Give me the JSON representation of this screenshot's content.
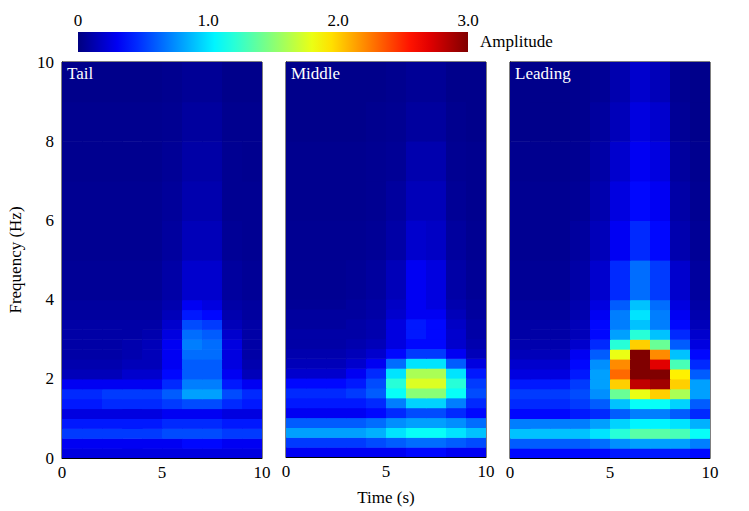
{
  "chart_data": {
    "type": "heatmap",
    "x_label": "Time (s)",
    "y_label": "Frequency (Hz)",
    "xlim": [
      0,
      10
    ],
    "xticks": [
      0,
      5,
      10
    ],
    "ylim": [
      0,
      10
    ],
    "yticks": [
      0,
      2,
      4,
      6,
      8,
      10
    ],
    "x_edges": [
      0,
      1,
      2,
      3,
      4,
      5,
      6,
      7,
      8,
      9,
      10
    ],
    "y_edges": [
      0,
      0.25,
      0.5,
      0.75,
      1,
      1.25,
      1.5,
      1.75,
      2,
      2.25,
      2.5,
      2.75,
      3,
      3.25,
      3.5,
      3.75,
      4,
      5,
      6,
      7,
      8,
      9,
      10
    ],
    "colorbar": {
      "title": "Amplitude",
      "range": [
        0,
        3
      ],
      "ticks": [
        0,
        {
          "value": 1,
          "label": "1.0"
        },
        {
          "value": 2,
          "label": "2.0"
        },
        {
          "value": 3,
          "label": "3.0"
        }
      ]
    },
    "panels": [
      {
        "title": "Tail",
        "cells": [
          [
            0.25,
            0.25,
            0.25,
            0.25,
            0.25,
            0.25,
            0.25,
            0.25,
            0.25,
            0.25
          ],
          [
            0.3,
            0.3,
            0.3,
            0.3,
            0.3,
            0.3,
            0.35,
            0.35,
            0.3,
            0.3
          ],
          [
            0.5,
            0.5,
            0.5,
            0.5,
            0.5,
            0.55,
            0.55,
            0.55,
            0.5,
            0.5
          ],
          [
            0.4,
            0.4,
            0.4,
            0.4,
            0.4,
            0.45,
            0.45,
            0.45,
            0.4,
            0.4
          ],
          [
            0.25,
            0.25,
            0.25,
            0.25,
            0.25,
            0.3,
            0.3,
            0.3,
            0.25,
            0.25
          ],
          [
            0.4,
            0.4,
            0.45,
            0.45,
            0.45,
            0.5,
            0.55,
            0.55,
            0.45,
            0.4
          ],
          [
            0.45,
            0.45,
            0.5,
            0.5,
            0.5,
            0.6,
            0.8,
            0.8,
            0.55,
            0.45
          ],
          [
            0.3,
            0.3,
            0.3,
            0.3,
            0.3,
            0.45,
            0.7,
            0.7,
            0.4,
            0.3
          ],
          [
            0.15,
            0.15,
            0.15,
            0.2,
            0.2,
            0.35,
            0.6,
            0.6,
            0.3,
            0.15
          ],
          [
            0.12,
            0.12,
            0.12,
            0.15,
            0.15,
            0.3,
            0.6,
            0.6,
            0.25,
            0.12
          ],
          [
            0.1,
            0.1,
            0.1,
            0.12,
            0.15,
            0.3,
            0.65,
            0.65,
            0.25,
            0.1
          ],
          [
            0.1,
            0.1,
            0.1,
            0.12,
            0.15,
            0.3,
            0.7,
            0.65,
            0.25,
            0.1
          ],
          [
            0.1,
            0.1,
            0.1,
            0.1,
            0.12,
            0.25,
            0.65,
            0.6,
            0.2,
            0.1
          ],
          [
            0.1,
            0.1,
            0.1,
            0.1,
            0.1,
            0.2,
            0.55,
            0.5,
            0.15,
            0.1
          ],
          [
            0.08,
            0.08,
            0.08,
            0.08,
            0.08,
            0.15,
            0.4,
            0.35,
            0.12,
            0.08
          ],
          [
            0.08,
            0.08,
            0.08,
            0.08,
            0.08,
            0.12,
            0.3,
            0.25,
            0.1,
            0.08
          ],
          [
            0.06,
            0.06,
            0.06,
            0.06,
            0.06,
            0.1,
            0.2,
            0.2,
            0.08,
            0.06
          ],
          [
            0.05,
            0.05,
            0.05,
            0.05,
            0.05,
            0.08,
            0.15,
            0.15,
            0.06,
            0.05
          ],
          [
            0.05,
            0.05,
            0.05,
            0.05,
            0.05,
            0.07,
            0.12,
            0.12,
            0.05,
            0.05
          ],
          [
            0.04,
            0.04,
            0.04,
            0.04,
            0.04,
            0.06,
            0.1,
            0.1,
            0.05,
            0.04
          ],
          [
            0.04,
            0.04,
            0.04,
            0.04,
            0.04,
            0.05,
            0.08,
            0.08,
            0.04,
            0.04
          ],
          [
            0.03,
            0.03,
            0.03,
            0.03,
            0.03,
            0.04,
            0.06,
            0.06,
            0.03,
            0.03
          ]
        ]
      },
      {
        "title": "Middle",
        "cells": [
          [
            0.3,
            0.3,
            0.3,
            0.3,
            0.3,
            0.3,
            0.35,
            0.35,
            0.3,
            0.3
          ],
          [
            0.5,
            0.5,
            0.5,
            0.5,
            0.55,
            0.6,
            0.65,
            0.65,
            0.6,
            0.55
          ],
          [
            0.8,
            0.8,
            0.8,
            0.8,
            0.85,
            1.0,
            1.1,
            1.1,
            1.0,
            0.9
          ],
          [
            0.6,
            0.6,
            0.6,
            0.6,
            0.65,
            0.75,
            0.8,
            0.8,
            0.75,
            0.65
          ],
          [
            0.3,
            0.3,
            0.3,
            0.3,
            0.35,
            0.45,
            0.55,
            0.55,
            0.45,
            0.35
          ],
          [
            0.4,
            0.4,
            0.4,
            0.4,
            0.45,
            0.7,
            0.95,
            0.95,
            0.7,
            0.45
          ],
          [
            0.45,
            0.45,
            0.45,
            0.5,
            0.6,
            1.1,
            1.5,
            1.5,
            1.1,
            0.55
          ],
          [
            0.35,
            0.35,
            0.35,
            0.4,
            0.55,
            1.2,
            1.75,
            1.75,
            1.2,
            0.5
          ],
          [
            0.2,
            0.2,
            0.2,
            0.3,
            0.45,
            1.0,
            1.6,
            1.6,
            1.0,
            0.4
          ],
          [
            0.15,
            0.15,
            0.15,
            0.2,
            0.3,
            0.65,
            1.0,
            1.0,
            0.6,
            0.25
          ],
          [
            0.12,
            0.12,
            0.12,
            0.15,
            0.2,
            0.35,
            0.5,
            0.5,
            0.3,
            0.15
          ],
          [
            0.1,
            0.1,
            0.1,
            0.12,
            0.15,
            0.25,
            0.35,
            0.35,
            0.2,
            0.12
          ],
          [
            0.1,
            0.1,
            0.1,
            0.1,
            0.12,
            0.25,
            0.4,
            0.35,
            0.2,
            0.1
          ],
          [
            0.08,
            0.08,
            0.08,
            0.1,
            0.12,
            0.25,
            0.4,
            0.35,
            0.18,
            0.1
          ],
          [
            0.08,
            0.08,
            0.08,
            0.08,
            0.1,
            0.2,
            0.3,
            0.3,
            0.15,
            0.08
          ],
          [
            0.06,
            0.06,
            0.06,
            0.08,
            0.1,
            0.18,
            0.3,
            0.25,
            0.12,
            0.08
          ],
          [
            0.05,
            0.05,
            0.05,
            0.06,
            0.08,
            0.15,
            0.3,
            0.25,
            0.1,
            0.06
          ],
          [
            0.05,
            0.05,
            0.05,
            0.05,
            0.06,
            0.1,
            0.2,
            0.18,
            0.08,
            0.05
          ],
          [
            0.04,
            0.04,
            0.04,
            0.04,
            0.05,
            0.08,
            0.15,
            0.15,
            0.06,
            0.04
          ],
          [
            0.04,
            0.04,
            0.04,
            0.04,
            0.05,
            0.06,
            0.12,
            0.12,
            0.05,
            0.04
          ],
          [
            0.03,
            0.03,
            0.03,
            0.03,
            0.04,
            0.05,
            0.08,
            0.08,
            0.04,
            0.03
          ],
          [
            0.03,
            0.03,
            0.03,
            0.03,
            0.03,
            0.04,
            0.06,
            0.06,
            0.03,
            0.03
          ]
        ]
      },
      {
        "title": "Leading",
        "cells": [
          [
            0.35,
            0.35,
            0.35,
            0.35,
            0.35,
            0.4,
            0.4,
            0.4,
            0.4,
            0.35
          ],
          [
            0.6,
            0.6,
            0.6,
            0.6,
            0.65,
            0.75,
            0.8,
            0.8,
            0.8,
            0.7
          ],
          [
            0.9,
            0.9,
            0.9,
            0.9,
            1.0,
            1.2,
            1.35,
            1.35,
            1.3,
            1.1
          ],
          [
            0.7,
            0.7,
            0.7,
            0.7,
            0.8,
            0.95,
            1.05,
            1.05,
            1.0,
            0.85
          ],
          [
            0.35,
            0.35,
            0.35,
            0.4,
            0.45,
            0.6,
            0.7,
            0.7,
            0.6,
            0.45
          ],
          [
            0.45,
            0.45,
            0.45,
            0.5,
            0.6,
            0.9,
            1.1,
            1.1,
            0.95,
            0.6
          ],
          [
            0.5,
            0.5,
            0.5,
            0.55,
            0.75,
            1.4,
            1.8,
            2.0,
            1.6,
            0.8
          ],
          [
            0.4,
            0.4,
            0.4,
            0.5,
            0.8,
            2.0,
            2.8,
            2.9,
            2.0,
            0.8
          ],
          [
            0.25,
            0.25,
            0.25,
            0.4,
            0.8,
            2.3,
            3.2,
            3.1,
            1.9,
            0.6
          ],
          [
            0.2,
            0.2,
            0.2,
            0.35,
            0.75,
            2.2,
            3.3,
            2.7,
            1.3,
            0.45
          ],
          [
            0.15,
            0.15,
            0.15,
            0.3,
            0.6,
            1.8,
            3.0,
            2.2,
            0.9,
            0.35
          ],
          [
            0.12,
            0.12,
            0.12,
            0.2,
            0.45,
            1.2,
            2.0,
            1.4,
            0.6,
            0.25
          ],
          [
            0.1,
            0.1,
            0.1,
            0.15,
            0.35,
            0.8,
            1.2,
            0.9,
            0.45,
            0.2
          ],
          [
            0.1,
            0.1,
            0.1,
            0.15,
            0.35,
            0.7,
            0.9,
            0.7,
            0.35,
            0.15
          ],
          [
            0.08,
            0.08,
            0.08,
            0.12,
            0.3,
            0.7,
            1.0,
            0.7,
            0.3,
            0.12
          ],
          [
            0.08,
            0.08,
            0.08,
            0.12,
            0.25,
            0.6,
            0.9,
            0.65,
            0.25,
            0.1
          ],
          [
            0.06,
            0.06,
            0.06,
            0.1,
            0.2,
            0.45,
            0.65,
            0.5,
            0.2,
            0.08
          ],
          [
            0.05,
            0.05,
            0.05,
            0.08,
            0.15,
            0.3,
            0.45,
            0.35,
            0.12,
            0.06
          ],
          [
            0.05,
            0.05,
            0.05,
            0.06,
            0.12,
            0.25,
            0.35,
            0.3,
            0.1,
            0.05
          ],
          [
            0.04,
            0.04,
            0.04,
            0.05,
            0.1,
            0.2,
            0.3,
            0.25,
            0.08,
            0.04
          ],
          [
            0.03,
            0.03,
            0.03,
            0.04,
            0.08,
            0.15,
            0.25,
            0.2,
            0.06,
            0.03
          ],
          [
            0.03,
            0.03,
            0.03,
            0.04,
            0.06,
            0.12,
            0.2,
            0.15,
            0.05,
            0.03
          ]
        ]
      }
    ]
  }
}
